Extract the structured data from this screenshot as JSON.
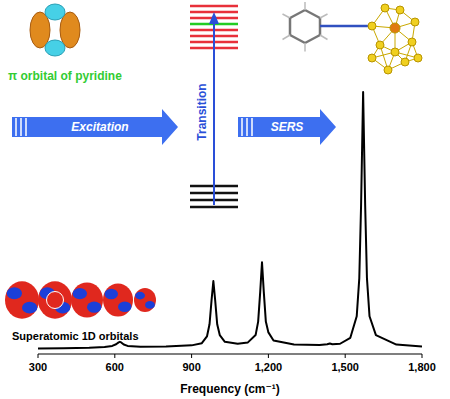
{
  "chart_data": {
    "type": "line",
    "x_label": "Frequency (cm⁻¹)",
    "annotations": [
      "π orbital of pyridine",
      "Excitation",
      "Transition",
      "SERS",
      "Superatomic 1D orbitals"
    ],
    "x": [
      300,
      400,
      500,
      560,
      590,
      605,
      615,
      620,
      625,
      635,
      650,
      700,
      800,
      900,
      940,
      960,
      970,
      978,
      985,
      992,
      1000,
      1010,
      1030,
      1080,
      1120,
      1150,
      1160,
      1168,
      1175,
      1182,
      1190,
      1200,
      1220,
      1300,
      1400,
      1430,
      1440,
      1450,
      1480,
      1520,
      1545,
      1555,
      1562,
      1570,
      1578,
      1585,
      1595,
      1620,
      1700,
      1800
    ],
    "values": [
      2,
      2.1,
      2.3,
      2.6,
      3,
      3.6,
      4.3,
      4.5,
      4.3,
      3.5,
      3,
      2.7,
      2.8,
      3.2,
      4,
      6.5,
      11,
      20,
      27,
      20,
      11,
      7,
      4.5,
      3.8,
      4.3,
      7,
      12,
      23,
      34,
      23,
      12,
      8,
      5,
      3.5,
      3.3,
      3.6,
      3.9,
      3.6,
      3.8,
      6,
      14,
      28,
      55,
      97,
      55,
      28,
      14,
      7,
      3.5,
      2.8
    ],
    "color": "#000000",
    "xlim": [
      300,
      1800
    ],
    "xticks": [
      300,
      600,
      900,
      {
        "value": 1200,
        "label": "1,200"
      },
      {
        "value": 1500,
        "label": "1,500"
      },
      {
        "value": 1800,
        "label": "1,800"
      }
    ],
    "ylim": [
      0,
      100
    ],
    "tick_labels": "x",
    "grid": false
  }
}
